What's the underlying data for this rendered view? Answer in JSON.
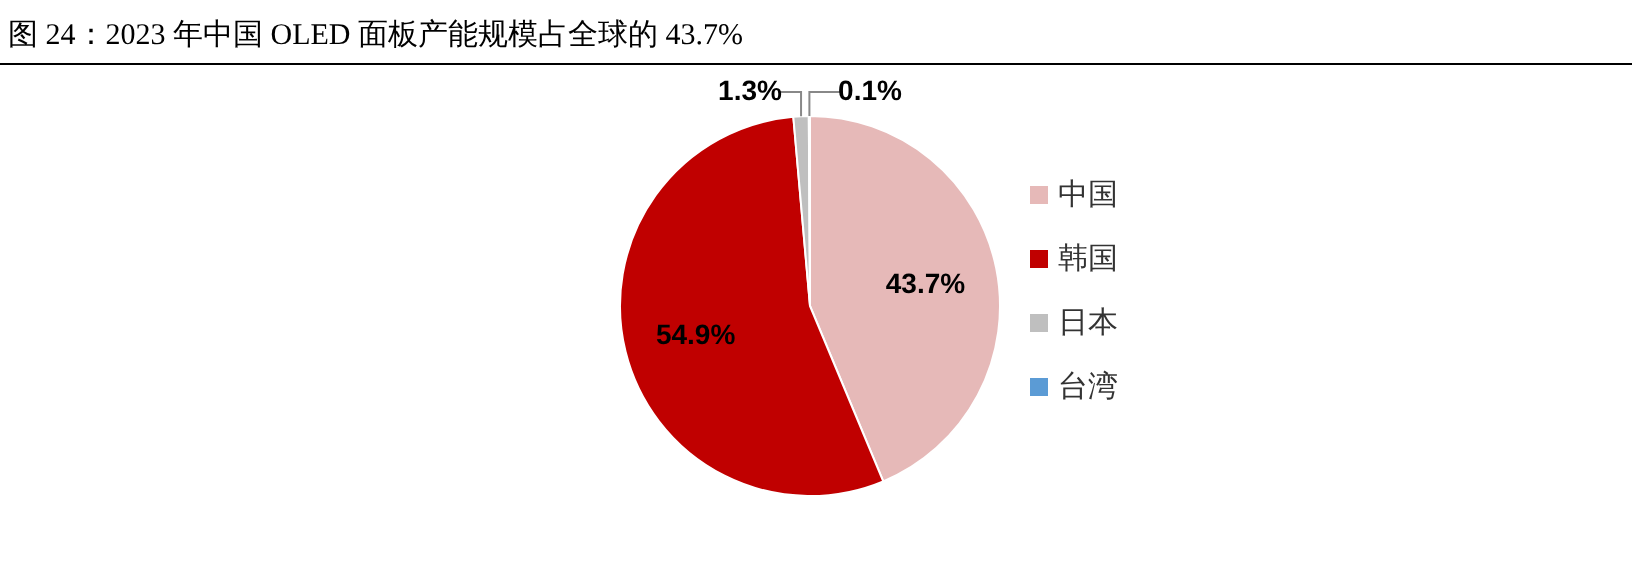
{
  "chart_data": {
    "type": "pie",
    "title": "图 24：2023 年中国 OLED 面板产能规模占全球的 43.7%",
    "categories": [
      "中国",
      "韩国",
      "日本",
      "台湾"
    ],
    "values": [
      43.7,
      54.9,
      1.3,
      0.1
    ],
    "colors": [
      "#e6b9b8",
      "#c00000",
      "#bfbfbf",
      "#5b9bd5"
    ],
    "value_labels": [
      "43.7%",
      "54.9%",
      "1.3%",
      "0.1%"
    ],
    "legend": "right"
  }
}
